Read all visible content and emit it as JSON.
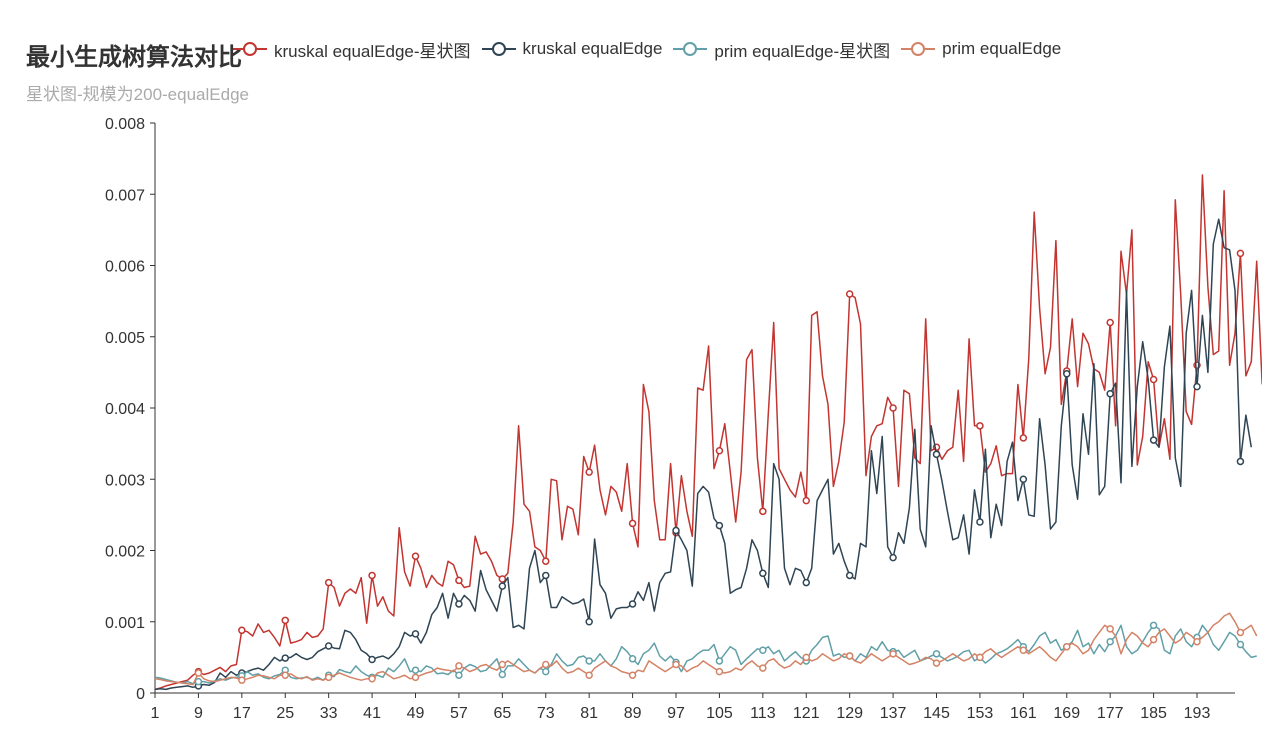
{
  "chart_data": {
    "type": "line",
    "title": "最小生成树算法对比",
    "subtitle": "星状图-规模为200-equalEdge",
    "xlabel": "",
    "ylabel": "",
    "x_ticks": [
      "1",
      "9",
      "17",
      "25",
      "33",
      "41",
      "49",
      "57",
      "65",
      "73",
      "81",
      "89",
      "97",
      "105",
      "113",
      "121",
      "129",
      "137",
      "145",
      "153",
      "161",
      "169",
      "177",
      "185",
      "193"
    ],
    "y_ticks": [
      "0",
      "0.001",
      "0.002",
      "0.003",
      "0.004",
      "0.005",
      "0.006",
      "0.007",
      "0.008"
    ],
    "xlim": [
      1,
      200
    ],
    "ylim": [
      0,
      0.008
    ],
    "legend_position": "top",
    "grid": false,
    "x_step": 4,
    "series": [
      {
        "name": "kruskal equalEdge-星状图",
        "color": "#c23531",
        "marker_every": 8,
        "values": [
          5e-05,
          7e-05,
          0.0001,
          0.00012,
          0.00014,
          0.00016,
          0.00018,
          0.00025,
          0.0003,
          0.00026,
          0.00028,
          0.00032,
          0.00036,
          0.0003,
          0.00038,
          0.0004,
          0.00088,
          0.00086,
          0.0008,
          0.00097,
          0.00085,
          0.00088,
          0.00078,
          0.00066,
          0.00102,
          0.0007,
          0.00072,
          0.00075,
          0.00085,
          0.00078,
          0.0008,
          0.0009,
          0.00155,
          0.00148,
          0.00122,
          0.0014,
          0.00146,
          0.0014,
          0.00162,
          0.00098,
          0.00165,
          0.00122,
          0.00135,
          0.00115,
          0.00108,
          0.00232,
          0.0017,
          0.0015,
          0.00192,
          0.00175,
          0.00148,
          0.00165,
          0.00155,
          0.0015,
          0.00185,
          0.0018,
          0.00158,
          0.00148,
          0.0015,
          0.0022,
          0.00195,
          0.00198,
          0.00185,
          0.00165,
          0.0016,
          0.00168,
          0.0024,
          0.00375,
          0.00265,
          0.00255,
          0.00205,
          0.002,
          0.00185,
          0.003,
          0.00298,
          0.00215,
          0.00262,
          0.00258,
          0.00222,
          0.00332,
          0.0031,
          0.00348,
          0.00285,
          0.0025,
          0.0029,
          0.00282,
          0.00255,
          0.00322,
          0.00238,
          0.00205,
          0.00433,
          0.00395,
          0.0027,
          0.00215,
          0.00215,
          0.00322,
          0.00225,
          0.00305,
          0.00255,
          0.0022,
          0.00428,
          0.00425,
          0.00487,
          0.00315,
          0.0034,
          0.00378,
          0.0031,
          0.0024,
          0.0031,
          0.00468,
          0.00482,
          0.0033,
          0.00255,
          0.00392,
          0.0052,
          0.00315,
          0.003,
          0.00285,
          0.00275,
          0.0031,
          0.0027,
          0.0053,
          0.00535,
          0.00445,
          0.00405,
          0.0029,
          0.00325,
          0.0038,
          0.0056,
          0.00555,
          0.00518,
          0.00305,
          0.0036,
          0.00375,
          0.00378,
          0.00415,
          0.004,
          0.0029,
          0.00425,
          0.0042,
          0.0033,
          0.00322,
          0.00525,
          0.0034,
          0.00345,
          0.00328,
          0.0034,
          0.00345,
          0.00425,
          0.00325,
          0.00497,
          0.00375,
          0.00375,
          0.0031,
          0.00322,
          0.00347,
          0.00305,
          0.00308,
          0.00308,
          0.00433,
          0.00358,
          0.0047,
          0.00675,
          0.0054,
          0.00448,
          0.00485,
          0.00635,
          0.00405,
          0.00452,
          0.00525,
          0.0043,
          0.00505,
          0.0049,
          0.00455,
          0.0045,
          0.00425,
          0.0052,
          0.00375,
          0.0062,
          0.0056,
          0.0065,
          0.0032,
          0.0036,
          0.00465,
          0.0044,
          0.00345,
          0.00385,
          0.00328,
          0.00692,
          0.0056,
          0.00395,
          0.00377,
          0.0046,
          0.00727,
          0.0057,
          0.00475,
          0.0048,
          0.00705,
          0.0046,
          0.00505,
          0.00617,
          0.00445,
          0.00465,
          0.00606,
          0.00435,
          0.00412,
          0.0043
        ]
      },
      {
        "name": "kruskal equalEdge",
        "color": "#2f4554",
        "marker_every": 8,
        "values": [
          5e-05,
          6e-05,
          5e-05,
          7e-05,
          8e-05,
          9e-05,
          0.0001,
          8e-05,
          0.0001,
          0.00012,
          0.00011,
          0.00015,
          0.00028,
          0.00022,
          0.0003,
          0.00025,
          0.00028,
          0.0003,
          0.00033,
          0.00035,
          0.00032,
          0.0004,
          0.0005,
          0.00045,
          0.00049,
          0.0005,
          0.00055,
          0.0005,
          0.00047,
          0.0005,
          0.00058,
          0.00062,
          0.00066,
          0.00063,
          0.00062,
          0.00088,
          0.00085,
          0.00075,
          0.0006,
          0.00055,
          0.00047,
          0.0005,
          0.00052,
          0.00048,
          0.00055,
          0.00065,
          0.00085,
          0.0008,
          0.00083,
          0.0007,
          0.00085,
          0.0011,
          0.0012,
          0.0014,
          0.00105,
          0.0014,
          0.00125,
          0.00137,
          0.0013,
          0.00115,
          0.00172,
          0.00145,
          0.0013,
          0.00115,
          0.0015,
          0.00162,
          0.00092,
          0.00095,
          0.0009,
          0.00175,
          0.002,
          0.00155,
          0.00165,
          0.0012,
          0.0012,
          0.00135,
          0.0013,
          0.00125,
          0.00127,
          0.00132,
          0.001,
          0.00216,
          0.00152,
          0.0014,
          0.00105,
          0.00118,
          0.0012,
          0.0012,
          0.00125,
          0.00142,
          0.0013,
          0.00155,
          0.00115,
          0.00155,
          0.00168,
          0.0017,
          0.00228,
          0.00215,
          0.002,
          0.0015,
          0.0028,
          0.0029,
          0.00282,
          0.00245,
          0.00235,
          0.0021,
          0.0014,
          0.00145,
          0.00148,
          0.00175,
          0.00215,
          0.002,
          0.00168,
          0.00148,
          0.00322,
          0.003,
          0.00175,
          0.00152,
          0.00175,
          0.00172,
          0.00155,
          0.00175,
          0.0027,
          0.00285,
          0.003,
          0.00195,
          0.0021,
          0.00185,
          0.00165,
          0.0016,
          0.0021,
          0.00205,
          0.0034,
          0.0028,
          0.0036,
          0.00205,
          0.0019,
          0.00225,
          0.0021,
          0.0026,
          0.0037,
          0.0023,
          0.00205,
          0.00375,
          0.00335,
          0.00298,
          0.00255,
          0.00215,
          0.00218,
          0.0025,
          0.00195,
          0.00285,
          0.0024,
          0.00342,
          0.00218,
          0.00265,
          0.00235,
          0.00325,
          0.00352,
          0.0027,
          0.003,
          0.0025,
          0.00248,
          0.00385,
          0.0032,
          0.0023,
          0.0024,
          0.00375,
          0.00448,
          0.0032,
          0.00272,
          0.00392,
          0.00335,
          0.00462,
          0.00278,
          0.0029,
          0.0042,
          0.00435,
          0.00295,
          0.00565,
          0.00318,
          0.0043,
          0.00493,
          0.0044,
          0.00355,
          0.00345,
          0.00458,
          0.00515,
          0.0033,
          0.0029,
          0.00505,
          0.00565,
          0.0043,
          0.0053,
          0.0045,
          0.0063,
          0.00665,
          0.00625,
          0.00622,
          0.00565,
          0.00325,
          0.0039,
          0.00345
        ]
      },
      {
        "name": "prim equalEdge-星状图",
        "color": "#61a0a8",
        "marker_every": 8,
        "values": [
          0.00022,
          0.00021,
          0.00019,
          0.00017,
          0.00015,
          0.00014,
          0.00016,
          0.00013,
          0.00016,
          0.00016,
          0.00014,
          0.00017,
          0.0002,
          0.00018,
          0.00021,
          0.00022,
          0.00024,
          0.0003,
          0.00025,
          0.00027,
          0.00022,
          0.0002,
          0.00024,
          0.00026,
          0.00032,
          0.00022,
          0.0002,
          0.00021,
          0.00022,
          0.00019,
          0.00022,
          0.00018,
          0.00025,
          0.00023,
          0.00033,
          0.0003,
          0.00028,
          0.00038,
          0.0003,
          0.00025,
          0.00022,
          0.00025,
          0.00022,
          0.00035,
          0.0003,
          0.00038,
          0.00048,
          0.0003,
          0.00032,
          0.0003,
          0.00038,
          0.00035,
          0.00027,
          0.00028,
          0.00026,
          0.00032,
          0.00025,
          0.00035,
          0.0004,
          0.00037,
          0.0003,
          0.00032,
          0.0004,
          0.00048,
          0.00026,
          0.00038,
          0.00038,
          0.00048,
          0.0004,
          0.00032,
          0.00028,
          0.00035,
          0.0003,
          0.0004,
          0.00055,
          0.00045,
          0.00038,
          0.0004,
          0.0005,
          0.00052,
          0.00045,
          0.00045,
          0.00055,
          0.00045,
          0.00038,
          0.00048,
          0.00065,
          0.00058,
          0.00048,
          0.0004,
          0.00055,
          0.0006,
          0.0007,
          0.00052,
          0.00045,
          0.00052,
          0.00043,
          0.0003,
          0.00045,
          0.00048,
          0.00055,
          0.0006,
          0.0006,
          0.00068,
          0.00045,
          0.00055,
          0.00065,
          0.0006,
          0.0004,
          0.00048,
          0.00055,
          0.00062,
          0.0006,
          0.00065,
          0.00055,
          0.0006,
          0.00045,
          0.00052,
          0.00058,
          0.0005,
          0.00045,
          0.0006,
          0.00068,
          0.00078,
          0.0008,
          0.00052,
          0.00055,
          0.0005,
          0.00052,
          0.00045,
          0.00055,
          0.0005,
          0.00065,
          0.0006,
          0.00072,
          0.0006,
          0.00058,
          0.0006,
          0.0005,
          0.00055,
          0.0006,
          0.00045,
          0.00048,
          0.00052,
          0.00055,
          0.0005,
          0.00045,
          0.00048,
          0.00052,
          0.00058,
          0.0006,
          0.00045,
          0.0005,
          0.00042,
          0.00048,
          0.00055,
          0.00058,
          0.00062,
          0.00068,
          0.00075,
          0.00065,
          0.00058,
          0.00068,
          0.0008,
          0.00085,
          0.0007,
          0.00075,
          0.0006,
          0.00065,
          0.00072,
          0.00088,
          0.00065,
          0.0007,
          0.00055,
          0.00068,
          0.00058,
          0.00072,
          0.0008,
          0.00095,
          0.00065,
          0.00055,
          0.0006,
          0.00072,
          0.00085,
          0.00095,
          0.0009,
          0.0006,
          0.00055,
          0.0008,
          0.0009,
          0.00072,
          0.00065,
          0.00078,
          0.00095,
          0.00085,
          0.00068,
          0.0006,
          0.00072,
          0.00085,
          0.0008,
          0.00068,
          0.00058,
          0.0005,
          0.00052
        ]
      },
      {
        "name": "prim equalEdge",
        "color": "#d48265",
        "marker_every": 8,
        "values": [
          0.0002,
          0.00019,
          0.00017,
          0.00016,
          0.00015,
          0.00014,
          0.00013,
          0.00012,
          0.00028,
          0.0002,
          0.00017,
          0.00016,
          0.00018,
          0.0002,
          0.00022,
          0.00021,
          0.00018,
          0.0002,
          0.00022,
          0.00025,
          0.00024,
          0.00022,
          0.0002,
          0.00025,
          0.00025,
          0.00027,
          0.00022,
          0.0002,
          0.00023,
          0.00018,
          0.0002,
          0.00018,
          0.00022,
          0.00025,
          0.00028,
          0.00025,
          0.00022,
          0.0002,
          0.00018,
          0.0002,
          0.0002,
          0.00028,
          0.0003,
          0.00025,
          0.0002,
          0.00022,
          0.00025,
          0.0002,
          0.00022,
          0.00025,
          0.00028,
          0.0003,
          0.00035,
          0.00033,
          0.00032,
          0.0003,
          0.00038,
          0.00035,
          0.0003,
          0.00033,
          0.00038,
          0.0004,
          0.00035,
          0.00032,
          0.0004,
          0.00045,
          0.0004,
          0.00035,
          0.0003,
          0.00032,
          0.00028,
          0.00035,
          0.0004,
          0.00038,
          0.00045,
          0.00035,
          0.00028,
          0.0003,
          0.00035,
          0.0003,
          0.00025,
          0.00035,
          0.0004,
          0.00045,
          0.00038,
          0.00035,
          0.0003,
          0.00028,
          0.00025,
          0.00032,
          0.0003,
          0.00045,
          0.0004,
          0.00035,
          0.0003,
          0.00035,
          0.0004,
          0.00038,
          0.0003,
          0.00035,
          0.00038,
          0.00045,
          0.0004,
          0.00035,
          0.0003,
          0.00028,
          0.0003,
          0.00035,
          0.00032,
          0.0004,
          0.00045,
          0.00038,
          0.00035,
          0.00045,
          0.00048,
          0.0004,
          0.00035,
          0.00038,
          0.00045,
          0.0004,
          0.0005,
          0.00045,
          0.00048,
          0.00055,
          0.0005,
          0.00045,
          0.00048,
          0.00055,
          0.00052,
          0.00045,
          0.00042,
          0.00048,
          0.00055,
          0.0005,
          0.00045,
          0.0005,
          0.00055,
          0.0005,
          0.00045,
          0.0004,
          0.00042,
          0.00045,
          0.0005,
          0.00048,
          0.00042,
          0.00045,
          0.0005,
          0.00055,
          0.0005,
          0.00045,
          0.00048,
          0.00055,
          0.0005,
          0.00058,
          0.00062,
          0.00055,
          0.0005,
          0.00055,
          0.0006,
          0.00065,
          0.0006,
          0.00055,
          0.0006,
          0.00065,
          0.00058,
          0.0005,
          0.00045,
          0.00055,
          0.00065,
          0.0007,
          0.00065,
          0.00055,
          0.0006,
          0.00075,
          0.00085,
          0.00095,
          0.0009,
          0.0008,
          0.00055,
          0.00075,
          0.00085,
          0.0008,
          0.0007,
          0.00065,
          0.00075,
          0.00085,
          0.0009,
          0.0008,
          0.0007,
          0.00075,
          0.00085,
          0.0008,
          0.00072,
          0.00078,
          0.00085,
          0.00095,
          0.001,
          0.00108,
          0.00112,
          0.001,
          0.00085,
          0.0009,
          0.00095,
          0.0008
        ]
      }
    ]
  }
}
